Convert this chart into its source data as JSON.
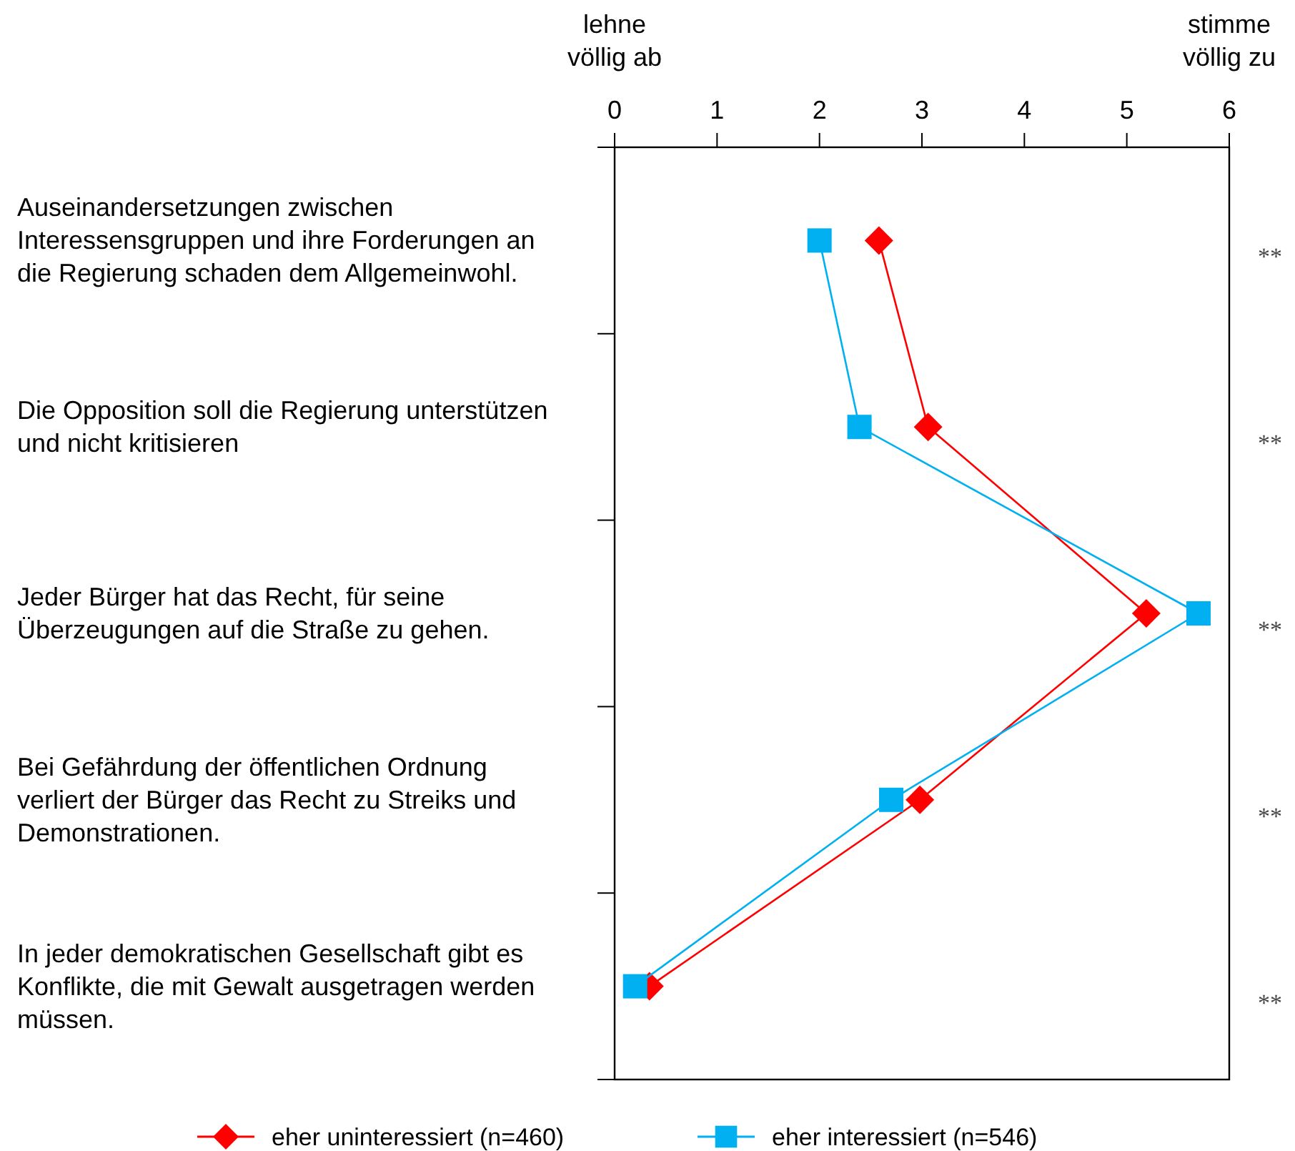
{
  "chart_data": {
    "type": "line",
    "orientation": "horizontal",
    "categories": [
      "Auseinandersetzungen zwischen Interessensgruppen und ihre Forderungen an die Regierung schaden dem Allgemeinwohl.",
      "Die Opposition soll die Regierung unterstützen und nicht kritisieren",
      "Jeder Bürger hat das Recht, für seine Überzeugungen auf die Straße zu gehen.",
      "Bei Gefährdung der öffentlichen Ordnung verliert der Bürger das Recht zu Streiks und Demonstrationen.",
      "In jeder demokratischen Gesellschaft gibt es Konflikte, die mit Gewalt ausgetragen werden müssen."
    ],
    "series": [
      {
        "name": "eher uninteressiert (n=460)",
        "color": "#ff0000",
        "marker": "diamond",
        "values": [
          2.58,
          3.06,
          5.19,
          2.98,
          0.34
        ]
      },
      {
        "name": "eher interessiert (n=546)",
        "color": "#00b0f0",
        "marker": "square",
        "values": [
          2.0,
          2.39,
          5.7,
          2.7,
          0.2
        ]
      }
    ],
    "xlim": [
      0,
      6
    ],
    "xticks": [
      0,
      1,
      2,
      3,
      4,
      5,
      6
    ],
    "annotations": [
      "lehne völlig ab",
      "stimme völlig zu",
      "**",
      "**",
      "**",
      "**",
      "**"
    ],
    "legend": "bottom",
    "grid": false,
    "line_style": "solid"
  }
}
